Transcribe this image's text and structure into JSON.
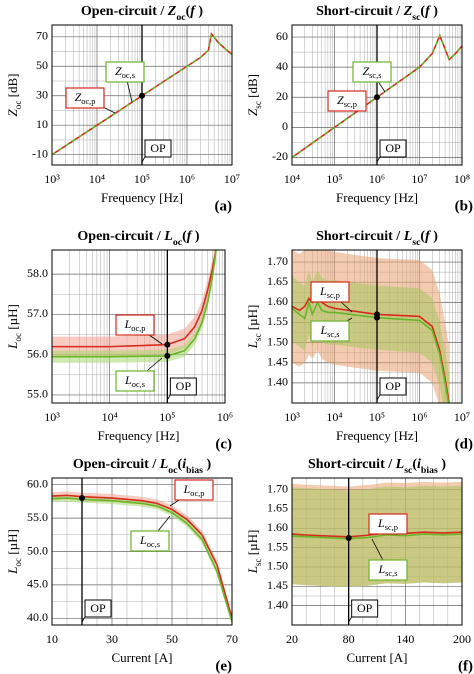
{
  "chart_data": [
    {
      "type": "line",
      "xlog": true,
      "letter": "(a)",
      "title": [
        {
          "text": "Open-circuit / "
        },
        {
          "text": "Z",
          "italic": true
        },
        {
          "text": "oc",
          "sub": true
        },
        {
          "text": "("
        },
        {
          "text": "f",
          "italic": true
        },
        {
          "text": " )"
        }
      ],
      "ylabel": [
        {
          "text": "Z",
          "italic": true
        },
        {
          "text": "oc",
          "sub": true
        },
        {
          "text": " [dB]"
        }
      ],
      "xlabel": "Frequency [Hz]",
      "xlim": [
        1000,
        10000000
      ],
      "xticks": [
        {
          "value": 1000,
          "label": "10³"
        },
        {
          "value": 10000,
          "label": "10⁴"
        },
        {
          "value": 100000,
          "label": "10⁵"
        },
        {
          "value": 1000000,
          "label": "10⁶"
        },
        {
          "value": 10000000,
          "label": "10⁷"
        }
      ],
      "ylim": [
        -17,
        78
      ],
      "yticks": [
        -10,
        10,
        30,
        50,
        70
      ],
      "grid": true,
      "x": [
        1000,
        10000,
        100000,
        1000000,
        2000000,
        3000000,
        3500000,
        5000000,
        7000000,
        10000000
      ],
      "series": [
        {
          "name": [
            {
              "text": "Z",
              "italic": true
            },
            {
              "text": "oc,p",
              "sub": true
            }
          ],
          "color": "#d62a1a",
          "values": [
            -10,
            10,
            30,
            50,
            56,
            61,
            72,
            66,
            62,
            58
          ]
        },
        {
          "name": [
            {
              "text": "Z",
              "italic": true
            },
            {
              "text": "oc,s",
              "sub": true
            }
          ],
          "color": "#6ab42a",
          "dash": true,
          "values": [
            -10,
            10,
            30,
            50,
            56,
            61,
            72,
            66,
            62,
            58
          ]
        }
      ],
      "op": {
        "label": "OP",
        "x": 100000,
        "y": [
          30
        ]
      }
    },
    {
      "type": "line",
      "xlog": true,
      "letter": "(b)",
      "title": [
        {
          "text": "Short-circuit / "
        },
        {
          "text": "Z",
          "italic": true
        },
        {
          "text": "sc",
          "sub": true
        },
        {
          "text": "("
        },
        {
          "text": "f",
          "italic": true
        },
        {
          "text": " )"
        }
      ],
      "ylabel": [
        {
          "text": "Z",
          "italic": true
        },
        {
          "text": "sc",
          "sub": true
        },
        {
          "text": " [dB]"
        }
      ],
      "xlabel": "Frequency [Hz]",
      "xlim": [
        10000,
        100000000
      ],
      "xticks": [
        {
          "value": 10000,
          "label": "10⁴"
        },
        {
          "value": 100000,
          "label": "10⁵"
        },
        {
          "value": 1000000,
          "label": "10⁶"
        },
        {
          "value": 10000000,
          "label": "10⁷"
        },
        {
          "value": 100000000,
          "label": "10⁸"
        }
      ],
      "ylim": [
        -25,
        68
      ],
      "yticks": [
        -20,
        0,
        20,
        40,
        60
      ],
      "grid": true,
      "x": [
        10000,
        100000,
        1000000,
        10000000,
        20000000,
        30000000,
        40000000,
        50000000,
        70000000,
        100000000
      ],
      "series": [
        {
          "name": [
            {
              "text": "Z",
              "italic": true
            },
            {
              "text": "sc,p",
              "sub": true
            }
          ],
          "color": "#d62a1a",
          "values": [
            -20,
            0,
            20,
            40,
            49,
            61,
            52,
            45,
            49,
            54
          ]
        },
        {
          "name": [
            {
              "text": "Z",
              "italic": true
            },
            {
              "text": "sc,s",
              "sub": true
            }
          ],
          "color": "#6ab42a",
          "dash": true,
          "values": [
            -20,
            0,
            20,
            40,
            49,
            61,
            52,
            45,
            49,
            54
          ]
        }
      ],
      "op": {
        "label": "OP",
        "x": 1000000,
        "y": [
          20
        ]
      }
    },
    {
      "type": "line",
      "xlog": true,
      "letter": "(c)",
      "title": [
        {
          "text": "Open-circuit / "
        },
        {
          "text": "L",
          "italic": true
        },
        {
          "text": "oc",
          "sub": true
        },
        {
          "text": "("
        },
        {
          "text": "f",
          "italic": true
        },
        {
          "text": " )"
        }
      ],
      "ylabel": [
        {
          "text": "L",
          "italic": true
        },
        {
          "text": "oc",
          "sub": true
        },
        {
          "text": " [µH]"
        }
      ],
      "xlabel": "Frequency [Hz]",
      "xlim": [
        1000,
        1000000
      ],
      "xticks": [
        {
          "value": 1000,
          "label": "10³"
        },
        {
          "value": 10000,
          "label": "10⁴"
        },
        {
          "value": 100000,
          "label": "10⁵"
        },
        {
          "value": 1000000,
          "label": "10⁶"
        }
      ],
      "ylim": [
        54.8,
        58.6
      ],
      "yticks": [
        {
          "value": 55,
          "label": "55.0"
        },
        {
          "value": 56,
          "label": "56.0"
        },
        {
          "value": 57,
          "label": "57.0"
        },
        {
          "value": 58,
          "label": "58.0"
        }
      ],
      "grid": true,
      "x": [
        1000,
        10000,
        100000,
        200000,
        300000,
        400000,
        500000,
        600000,
        700000
      ],
      "series": [
        {
          "name": [
            {
              "text": "L",
              "italic": true
            },
            {
              "text": "oc,p",
              "sub": true
            }
          ],
          "color": "#d62a1a",
          "band_color": "#f2a090",
          "error": 0.25,
          "values": [
            56.2,
            56.2,
            56.25,
            56.4,
            56.7,
            57.1,
            57.6,
            58.1,
            58.6
          ]
        },
        {
          "name": [
            {
              "text": "L",
              "italic": true
            },
            {
              "text": "oc,s",
              "sub": true
            }
          ],
          "color": "#6ab42a",
          "band_color": "#a8d870",
          "error": 0.15,
          "values": [
            55.95,
            55.95,
            55.97,
            56.1,
            56.4,
            56.8,
            57.3,
            57.9,
            58.6
          ]
        }
      ],
      "op": {
        "label": "OP",
        "x": 100000,
        "y": [
          56.25,
          55.97
        ]
      }
    },
    {
      "type": "line",
      "xlog": true,
      "letter": "(d)",
      "title": [
        {
          "text": "Short-circuit / "
        },
        {
          "text": "L",
          "italic": true
        },
        {
          "text": "sc",
          "sub": true
        },
        {
          "text": "("
        },
        {
          "text": "f",
          "italic": true
        },
        {
          "text": " )"
        }
      ],
      "ylabel": [
        {
          "text": "L",
          "italic": true
        },
        {
          "text": "sc",
          "sub": true
        },
        {
          "text": " [µH]"
        }
      ],
      "xlabel": "Frequency [Hz]",
      "xlim": [
        1000,
        10000000
      ],
      "xticks": [
        {
          "value": 1000,
          "label": "10³"
        },
        {
          "value": 10000,
          "label": "10⁴"
        },
        {
          "value": 100000,
          "label": "10⁵"
        },
        {
          "value": 1000000,
          "label": "10⁶"
        },
        {
          "value": 10000000,
          "label": "10⁷"
        }
      ],
      "ylim": [
        1.35,
        1.73
      ],
      "yticks": [
        {
          "value": 1.4,
          "label": "1.40"
        },
        1.45,
        {
          "value": 1.5,
          "label": "1.50"
        },
        1.55,
        {
          "value": 1.6,
          "label": "1.60"
        },
        1.65,
        {
          "value": 1.7,
          "label": "1.70"
        }
      ],
      "grid": true,
      "x": [
        1000,
        1500,
        2000,
        2500,
        3000,
        4000,
        5000,
        7000,
        10000,
        100000,
        1000000,
        2000000,
        3000000,
        4000000,
        5000000
      ],
      "series": [
        {
          "name": [
            {
              "text": "L",
              "italic": true
            },
            {
              "text": "sc,p",
              "sub": true
            }
          ],
          "color": "#d62a1a",
          "band_color": "#e8a070",
          "error": 0.14,
          "values": [
            1.59,
            1.58,
            1.59,
            1.61,
            1.6,
            1.62,
            1.6,
            1.59,
            1.585,
            1.57,
            1.565,
            1.54,
            1.48,
            1.41,
            1.35
          ]
        },
        {
          "name": [
            {
              "text": "L",
              "italic": true
            },
            {
              "text": "sc,s",
              "sub": true
            }
          ],
          "color": "#6ab42a",
          "band_color": "#a8c860",
          "error": 0.08,
          "values": [
            1.585,
            1.57,
            1.56,
            1.6,
            1.57,
            1.6,
            1.58,
            1.575,
            1.575,
            1.562,
            1.555,
            1.53,
            1.47,
            1.4,
            1.34
          ]
        }
      ],
      "op": {
        "label": "OP",
        "x": 100000,
        "y": [
          1.57,
          1.562
        ]
      }
    },
    {
      "type": "line",
      "xlog": false,
      "letter": "(e)",
      "title": [
        {
          "text": "Open-circuit / "
        },
        {
          "text": "L",
          "italic": true
        },
        {
          "text": "oc",
          "sub": true
        },
        {
          "text": "("
        },
        {
          "text": "i",
          "italic": true
        },
        {
          "text": "bias",
          "sub": true
        },
        {
          "text": " )"
        }
      ],
      "ylabel": [
        {
          "text": "L",
          "italic": true
        },
        {
          "text": "oc",
          "sub": true
        },
        {
          "text": " [µH]"
        }
      ],
      "xlabel": "Current [A]",
      "xlim": [
        10,
        70
      ],
      "xticks": [
        10,
        30,
        50,
        70
      ],
      "ylim": [
        39,
        61
      ],
      "yticks": [
        {
          "value": 40,
          "label": "40.0"
        },
        {
          "value": 45,
          "label": "45.0"
        },
        {
          "value": 50,
          "label": "50.0"
        },
        {
          "value": 55,
          "label": "55.0"
        },
        {
          "value": 60,
          "label": "60.0"
        }
      ],
      "grid": true,
      "x": [
        10,
        15,
        20,
        30,
        40,
        45,
        50,
        55,
        60,
        65,
        70
      ],
      "series": [
        {
          "name": [
            {
              "text": "L",
              "italic": true
            },
            {
              "text": "oc,p",
              "sub": true
            }
          ],
          "color": "#d62a1a",
          "band_color": "#f2a090",
          "error": 0.6,
          "values": [
            58.3,
            58.4,
            58.2,
            58.0,
            57.6,
            57.2,
            56.3,
            54.8,
            52.5,
            48,
            40
          ]
        },
        {
          "name": [
            {
              "text": "L",
              "italic": true
            },
            {
              "text": "oc,s",
              "sub": true
            }
          ],
          "color": "#6ab42a",
          "band_color": "#a8d870",
          "error": 0.5,
          "values": [
            57.9,
            58.0,
            57.8,
            57.6,
            57.2,
            56.8,
            55.8,
            54.2,
            51.8,
            47,
            39.5
          ]
        }
      ],
      "op": {
        "label": "OP",
        "x": 20,
        "y": [
          58.0
        ]
      }
    },
    {
      "type": "line",
      "xlog": false,
      "letter": "(f)",
      "title": [
        {
          "text": "Short-circuit / "
        },
        {
          "text": "L",
          "italic": true
        },
        {
          "text": "sc",
          "sub": true
        },
        {
          "text": "("
        },
        {
          "text": "i",
          "italic": true
        },
        {
          "text": "bias",
          "sub": true
        },
        {
          "text": " )"
        }
      ],
      "ylabel": [
        {
          "text": "L",
          "italic": true
        },
        {
          "text": "sc",
          "sub": true
        },
        {
          "text": " [µH]"
        }
      ],
      "xlabel": "Current [A]",
      "xlim": [
        20,
        200
      ],
      "xticks": [
        20,
        80,
        140,
        200
      ],
      "ylim": [
        1.35,
        1.73
      ],
      "yticks": [
        {
          "value": 1.4,
          "label": "1.40"
        },
        1.45,
        {
          "value": 1.5,
          "label": "1.50"
        },
        1.55,
        {
          "value": 1.6,
          "label": "1.60"
        },
        1.65,
        {
          "value": 1.7,
          "label": "1.70"
        }
      ],
      "grid": true,
      "x": [
        20,
        40,
        60,
        80,
        100,
        120,
        140,
        160,
        180,
        200
      ],
      "series": [
        {
          "name": [
            {
              "text": "L",
              "italic": true
            },
            {
              "text": "sc,p",
              "sub": true
            }
          ],
          "color": "#d62a1a",
          "band_color": "#e8a070",
          "error": 0.13,
          "values": [
            1.585,
            1.582,
            1.58,
            1.578,
            1.582,
            1.588,
            1.587,
            1.59,
            1.588,
            1.59
          ]
        },
        {
          "name": [
            {
              "text": "L",
              "italic": true
            },
            {
              "text": "sc,s",
              "sub": true
            }
          ],
          "color": "#6ab42a",
          "band_color": "#a8c860",
          "error": 0.125,
          "values": [
            1.58,
            1.578,
            1.575,
            1.573,
            1.576,
            1.583,
            1.581,
            1.585,
            1.583,
            1.585
          ]
        }
      ],
      "op": {
        "label": "OP",
        "x": 80,
        "y": [
          1.575
        ]
      }
    }
  ]
}
